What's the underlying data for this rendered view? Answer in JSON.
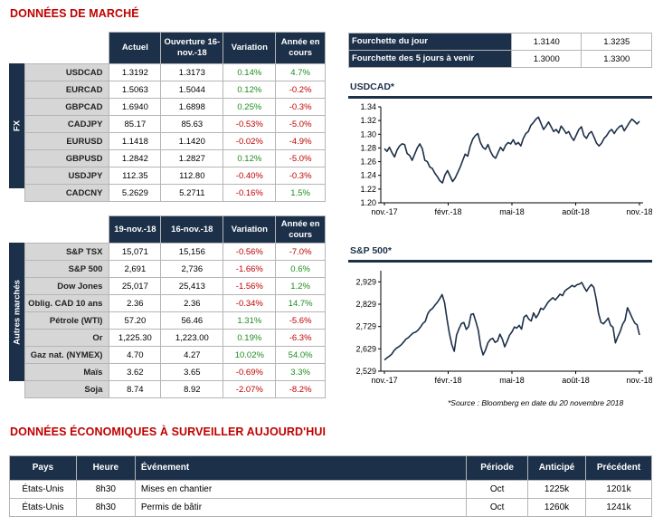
{
  "market_title": "DONNÉES DE MARCHÉ",
  "fx": {
    "side_label": "FX",
    "headers": [
      "Actuel",
      "Ouverture 16-nov.-18",
      "Variation",
      "Année en cours"
    ],
    "rows": [
      {
        "label": "USDCAD",
        "actuel": "1.3192",
        "ouverture": "1.3173",
        "variation": "0.14%",
        "annee": "4.7%",
        "var_dir": "pos",
        "ann_dir": "pos"
      },
      {
        "label": "EURCAD",
        "actuel": "1.5063",
        "ouverture": "1.5044",
        "variation": "0.12%",
        "annee": "-0.2%",
        "var_dir": "pos",
        "ann_dir": "neg"
      },
      {
        "label": "GBPCAD",
        "actuel": "1.6940",
        "ouverture": "1.6898",
        "variation": "0.25%",
        "annee": "-0.3%",
        "var_dir": "pos",
        "ann_dir": "neg"
      },
      {
        "label": "CADJPY",
        "actuel": "85.17",
        "ouverture": "85.63",
        "variation": "-0.53%",
        "annee": "-5.0%",
        "var_dir": "neg",
        "ann_dir": "neg"
      },
      {
        "label": "EURUSD",
        "actuel": "1.1418",
        "ouverture": "1.1420",
        "variation": "-0.02%",
        "annee": "-4.9%",
        "var_dir": "neg",
        "ann_dir": "neg"
      },
      {
        "label": "GBPUSD",
        "actuel": "1.2842",
        "ouverture": "1.2827",
        "variation": "0.12%",
        "annee": "-5.0%",
        "var_dir": "pos",
        "ann_dir": "neg"
      },
      {
        "label": "USDJPY",
        "actuel": "112.35",
        "ouverture": "112.80",
        "variation": "-0.40%",
        "annee": "-0.3%",
        "var_dir": "neg",
        "ann_dir": "neg"
      },
      {
        "label": "CADCNY",
        "actuel": "5.2629",
        "ouverture": "5.2711",
        "variation": "-0.16%",
        "annee": "1.5%",
        "var_dir": "neg",
        "ann_dir": "pos"
      }
    ]
  },
  "other": {
    "side_label": "Autres marchés",
    "headers": [
      "19-nov.-18",
      "16-nov.-18",
      "Variation",
      "Année en cours"
    ],
    "rows": [
      {
        "label": "S&P TSX",
        "actuel": "15,071",
        "ouverture": "15,156",
        "variation": "-0.56%",
        "annee": "-7.0%",
        "var_dir": "neg",
        "ann_dir": "neg"
      },
      {
        "label": "S&P 500",
        "actuel": "2,691",
        "ouverture": "2,736",
        "variation": "-1.66%",
        "annee": "0.6%",
        "var_dir": "neg",
        "ann_dir": "pos"
      },
      {
        "label": "Dow Jones",
        "actuel": "25,017",
        "ouverture": "25,413",
        "variation": "-1.56%",
        "annee": "1.2%",
        "var_dir": "neg",
        "ann_dir": "pos"
      },
      {
        "label": "Oblig. CAD 10 ans",
        "actuel": "2.36",
        "ouverture": "2.36",
        "variation": "-0.34%",
        "annee": "14.7%",
        "var_dir": "neg",
        "ann_dir": "pos"
      },
      {
        "label": "Pétrole (WTI)",
        "actuel": "57.20",
        "ouverture": "56.46",
        "variation": "1.31%",
        "annee": "-5.6%",
        "var_dir": "pos",
        "ann_dir": "neg"
      },
      {
        "label": "Or",
        "actuel": "1,225.30",
        "ouverture": "1,223.00",
        "variation": "0.19%",
        "annee": "-6.3%",
        "var_dir": "pos",
        "ann_dir": "neg"
      },
      {
        "label": "Gaz nat. (NYMEX)",
        "actuel": "4.70",
        "ouverture": "4.27",
        "variation": "10.02%",
        "annee": "54.0%",
        "var_dir": "pos",
        "ann_dir": "pos"
      },
      {
        "label": "Maïs",
        "actuel": "3.62",
        "ouverture": "3.65",
        "variation": "-0.69%",
        "annee": "3.3%",
        "var_dir": "neg",
        "ann_dir": "pos"
      },
      {
        "label": "Soja",
        "actuel": "8.74",
        "ouverture": "8.92",
        "variation": "-2.07%",
        "annee": "-8.2%",
        "var_dir": "neg",
        "ann_dir": "neg"
      }
    ]
  },
  "range": {
    "rows": [
      {
        "label": "Fourchette du jour",
        "low": "1.3140",
        "high": "1.3235"
      },
      {
        "label": "Fourchette des 5 jours à venir",
        "low": "1.3000",
        "high": "1.3300"
      }
    ]
  },
  "colors": {
    "navy": "#1c3049",
    "positive": "#1e8c1e",
    "negative": "#c00000",
    "line": "#1c3049"
  },
  "chart_data": [
    {
      "type": "line",
      "title": "USDCAD*",
      "ylim": [
        1.2,
        1.34
      ],
      "yticks": [
        "1.20",
        "1.22",
        "1.24",
        "1.26",
        "1.28",
        "1.30",
        "1.32",
        "1.34"
      ],
      "xticks": [
        "nov.-17",
        "févr.-18",
        "mai-18",
        "août-18",
        "nov.-18"
      ],
      "grid": false,
      "values": [
        1.279,
        1.275,
        1.281,
        1.273,
        1.267,
        1.277,
        1.283,
        1.286,
        1.285,
        1.272,
        1.269,
        1.262,
        1.271,
        1.28,
        1.286,
        1.279,
        1.262,
        1.26,
        1.252,
        1.25,
        1.243,
        1.238,
        1.232,
        1.229,
        1.241,
        1.247,
        1.239,
        1.231,
        1.236,
        1.244,
        1.252,
        1.262,
        1.271,
        1.268,
        1.283,
        1.293,
        1.298,
        1.301,
        1.288,
        1.281,
        1.278,
        1.285,
        1.275,
        1.268,
        1.265,
        1.273,
        1.281,
        1.276,
        1.284,
        1.288,
        1.286,
        1.292,
        1.285,
        1.288,
        1.283,
        1.294,
        1.301,
        1.304,
        1.313,
        1.317,
        1.322,
        1.325,
        1.316,
        1.307,
        1.312,
        1.318,
        1.311,
        1.304,
        1.307,
        1.302,
        1.312,
        1.307,
        1.301,
        1.304,
        1.296,
        1.291,
        1.299,
        1.307,
        1.311,
        1.298,
        1.294,
        1.301,
        1.304,
        1.296,
        1.287,
        1.283,
        1.287,
        1.294,
        1.298,
        1.304,
        1.307,
        1.301,
        1.307,
        1.311,
        1.313,
        1.305,
        1.311,
        1.317,
        1.322,
        1.319,
        1.315,
        1.319
      ]
    },
    {
      "type": "line",
      "title": "S&P 500*",
      "ylim": [
        2529,
        2979
      ],
      "yticks": [
        "2,529",
        "2,629",
        "2,729",
        "2,829",
        "2,929"
      ],
      "xticks": [
        "nov.-17",
        "févr.-18",
        "mai-18",
        "août-18",
        "nov.-18"
      ],
      "grid": false,
      "values": [
        2579,
        2588,
        2596,
        2605,
        2621,
        2632,
        2639,
        2647,
        2660,
        2673,
        2680,
        2691,
        2700,
        2704,
        2713,
        2727,
        2743,
        2752,
        2786,
        2802,
        2810,
        2825,
        2837,
        2854,
        2872,
        2836,
        2762,
        2699,
        2648,
        2618,
        2691,
        2719,
        2742,
        2747,
        2716,
        2729,
        2783,
        2786,
        2751,
        2712,
        2641,
        2602,
        2623,
        2656,
        2671,
        2676,
        2658,
        2664,
        2695,
        2672,
        2638,
        2663,
        2690,
        2705,
        2727,
        2722,
        2734,
        2717,
        2771,
        2780,
        2762,
        2754,
        2790,
        2768,
        2784,
        2811,
        2805,
        2820,
        2838,
        2849,
        2858,
        2848,
        2860,
        2874,
        2867,
        2888,
        2897,
        2904,
        2913,
        2907,
        2916,
        2919,
        2926,
        2905,
        2887,
        2904,
        2917,
        2904,
        2853,
        2786,
        2748,
        2741,
        2753,
        2767,
        2734,
        2726,
        2656,
        2684,
        2707,
        2740,
        2757,
        2813,
        2791,
        2767,
        2745,
        2737,
        2691
      ]
    }
  ],
  "source": "*Source : Bloomberg en date du  20 novembre 2018",
  "eco": {
    "title": "DONNÉES ÉCONOMIQUES À SURVEILLER AUJOURD'HUI",
    "headers": {
      "pays": "Pays",
      "heure": "Heure",
      "evenement": "Événement",
      "periode": "Période",
      "anticipe": "Anticipé",
      "precedent": "Précédent"
    },
    "rows": [
      {
        "pays": "États-Unis",
        "heure": "8h30",
        "evenement": "Mises en chantier",
        "periode": "Oct",
        "anticipe": "1225k",
        "precedent": "1201k"
      },
      {
        "pays": "États-Unis",
        "heure": "8h30",
        "evenement": "Permis de bâtir",
        "periode": "Oct",
        "anticipe": "1260k",
        "precedent": "1241k"
      }
    ]
  }
}
